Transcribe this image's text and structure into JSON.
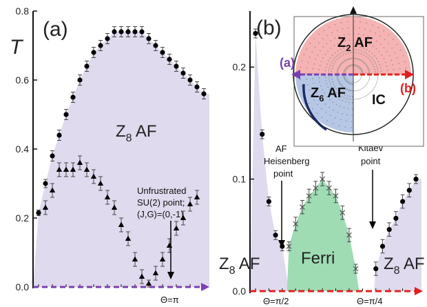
{
  "colors": {
    "af_fill": "#ddd6ec",
    "ferri_fill": "#9fdcb4",
    "purple_arrow": "#7a3fb0",
    "red_arrow": "#e02020",
    "inset_red": "#f4a6a6",
    "inset_blue": "#a9bde0"
  },
  "chart_data": [
    {
      "id": "a",
      "type": "scatter",
      "panel_label": "(a)",
      "ylabel": "T",
      "ylim": [
        0,
        0.8
      ],
      "yticks": [
        "0.0",
        "0.2",
        "0.4",
        "0.6",
        "0.8"
      ],
      "xlim": [
        0,
        24
      ],
      "x_marker_label": "Θ=π",
      "region_label_main": "Z",
      "region_label_sub": "8",
      "region_label_rest": " AF",
      "annotation": [
        "Unfrustrated",
        "SU(2) point;",
        "(J,G)=(0,-1)"
      ],
      "series": [
        {
          "marker": "circle",
          "x": [
            0,
            1,
            2,
            3,
            4,
            5,
            6,
            7,
            8,
            9,
            10,
            11,
            12,
            13,
            14,
            15,
            16,
            17,
            18,
            19,
            20,
            21,
            22,
            23,
            24
          ],
          "values": [
            0.215,
            0.3,
            0.38,
            0.44,
            0.5,
            0.55,
            0.6,
            0.64,
            0.68,
            0.7,
            0.72,
            0.74,
            0.74,
            0.74,
            0.74,
            0.74,
            0.72,
            0.7,
            0.68,
            0.66,
            0.64,
            0.62,
            0.6,
            0.58,
            0.56
          ],
          "errors": [
            0.008,
            0.012,
            0.015,
            0.015,
            0.015,
            0.015,
            0.015,
            0.015,
            0.015,
            0.015,
            0.015,
            0.015,
            0.015,
            0.015,
            0.015,
            0.015,
            0.015,
            0.015,
            0.015,
            0.015,
            0.015,
            0.015,
            0.015,
            0.015,
            0.015
          ]
        },
        {
          "marker": "triangle",
          "x": [
            1,
            2,
            3,
            4,
            5,
            6,
            7,
            8,
            9,
            10,
            11,
            12,
            13,
            14,
            15,
            16,
            17,
            18,
            19,
            20,
            21,
            22,
            23
          ],
          "values": [
            0.23,
            0.28,
            0.34,
            0.34,
            0.34,
            0.36,
            0.34,
            0.32,
            0.3,
            0.26,
            0.23,
            0.18,
            0.14,
            0.08,
            0.03,
            0.01,
            0.04,
            0.08,
            0.12,
            0.17,
            0.2,
            0.24,
            0.26
          ],
          "errors": [
            0.02,
            0.02,
            0.02,
            0.02,
            0.02,
            0.02,
            0.02,
            0.02,
            0.02,
            0.02,
            0.02,
            0.02,
            0.02,
            0.02,
            0.02,
            0.01,
            0.02,
            0.02,
            0.02,
            0.02,
            0.02,
            0.02,
            0.02
          ]
        }
      ]
    },
    {
      "id": "b",
      "type": "scatter",
      "panel_label": "(b)",
      "ylim": [
        0,
        0.25
      ],
      "yticks": [
        "0.0",
        "0.1",
        "0.2"
      ],
      "xlim": [
        0,
        24
      ],
      "x_marker_labels": [
        "Θ=π/2",
        "Θ=π/4"
      ],
      "region_labels": {
        "af_main": "Z",
        "af_sub": "8",
        "af_rest": " AF",
        "ferri": "Ferri"
      },
      "annotations": {
        "heisenberg": [
          "AF",
          "Heisenberg",
          "point"
        ],
        "kitaev": [
          "Kitaev",
          "point"
        ]
      },
      "series": [
        {
          "marker": "circle",
          "x": [
            0,
            1,
            2,
            3,
            4
          ],
          "values": [
            0.23,
            0.14,
            0.08,
            0.05,
            0.04
          ],
          "errors": [
            0.004,
            0.004,
            0.004,
            0.004,
            0.004
          ]
        },
        {
          "marker": "cross",
          "x": [
            5,
            6,
            7,
            8,
            9,
            10,
            11,
            12,
            13,
            14,
            15
          ],
          "values": [
            0.04,
            0.06,
            0.075,
            0.085,
            0.092,
            0.1,
            0.092,
            0.085,
            0.07,
            0.05,
            0.02
          ],
          "errors": [
            0.004,
            0.006,
            0.006,
            0.006,
            0.006,
            0.006,
            0.006,
            0.006,
            0.006,
            0.006,
            0.004
          ]
        },
        {
          "marker": "circle",
          "x": [
            18,
            19,
            20,
            21,
            22,
            23,
            24
          ],
          "values": [
            0.02,
            0.04,
            0.055,
            0.065,
            0.08,
            0.09,
            0.1
          ],
          "errors": [
            0.006,
            0.006,
            0.006,
            0.006,
            0.006,
            0.006,
            0.004
          ]
        }
      ]
    }
  ],
  "inset": {
    "labels": {
      "z2_main": "Z",
      "z2_sub": "2",
      "z2_rest": " AF",
      "z6_main": "Z",
      "z6_sub": "6",
      "z6_rest": " AF",
      "ic": "IC",
      "arrow_a": "(a)",
      "arrow_b": "(b)"
    }
  }
}
